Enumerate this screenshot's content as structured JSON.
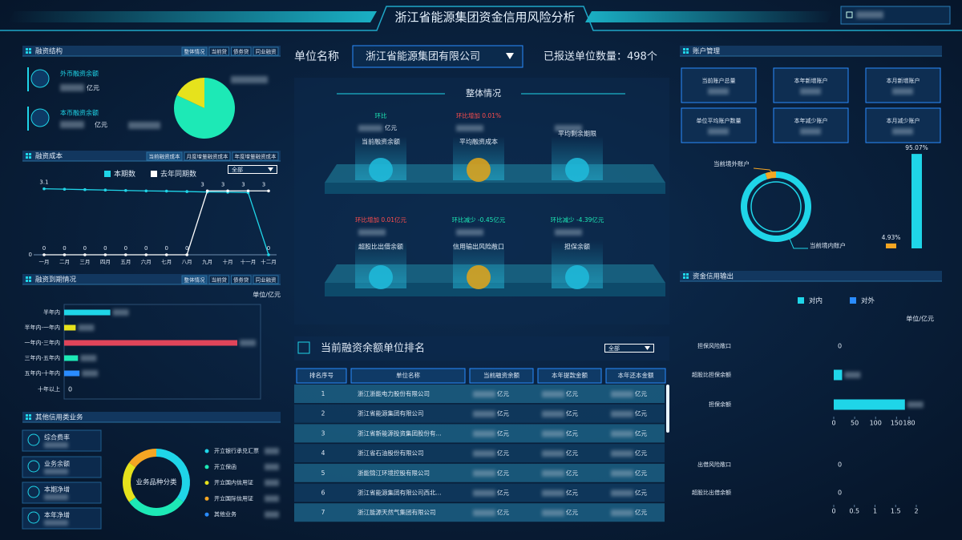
{
  "header": {
    "title": "浙江省能源集团资金信用风险分析"
  },
  "financing_structure": {
    "title": "融资结构",
    "tabs": [
      "整体情况",
      "当前贷",
      "债券贷",
      "同业融资"
    ],
    "items": [
      {
        "label": "外币融资余额",
        "unit": "亿元"
      },
      {
        "label": "本币融资余额",
        "unit": "亿元"
      }
    ],
    "chart": {
      "type": "pie",
      "values": [
        82,
        18
      ],
      "colors": [
        "#1de9b6",
        "#e6e21c"
      ]
    }
  },
  "financing_cost": {
    "title": "融资成本",
    "tabs": [
      "当前融资成本",
      "月度增量融资成本",
      "年度增量融资成本"
    ],
    "select": "全部",
    "chart": {
      "type": "line",
      "categories": [
        "一月",
        "二月",
        "三月",
        "四月",
        "五月",
        "六月",
        "七月",
        "八月",
        "九月",
        "十月",
        "十一月",
        "十二月"
      ],
      "series": [
        {
          "name": "本期数",
          "color": "#1fd5e8",
          "values": [
            3.1,
            3.08,
            3.06,
            3.04,
            3.02,
            3.0,
            2.99,
            2.97,
            2.95,
            2.94,
            2.92,
            0
          ]
        },
        {
          "name": "去年同期数",
          "color": "#ffffff",
          "values": [
            0,
            0,
            0,
            0,
            0,
            0,
            0,
            0,
            3,
            3,
            3,
            3
          ]
        }
      ],
      "ylim": [
        0,
        3.5
      ],
      "yticks": [
        0
      ],
      "grid": true
    }
  },
  "maturity": {
    "title": "融资到期情况",
    "tabs": [
      "整体情况",
      "当前贷",
      "债券贷",
      "同业融资"
    ],
    "unit": "单位/亿元",
    "chart": {
      "type": "bar",
      "orientation": "horizontal",
      "categories": [
        "半年内",
        "半年内-一年内",
        "一年内-三年内",
        "三年内-五年内",
        "五年内-十年内",
        "十年以上"
      ],
      "values": [
        60,
        15,
        225,
        18,
        20,
        0
      ],
      "colors": [
        "#1fd5e8",
        "#e6e21c",
        "#e0455a",
        "#1de9b6",
        "#2a8cff",
        "#1fd5e8"
      ],
      "xlim": [
        0,
        250
      ]
    }
  },
  "other_credit": {
    "title": "其他信用类业务",
    "items": [
      "综合费率",
      "业务余额",
      "本期净增",
      "本年净增"
    ],
    "chart": {
      "type": "pie",
      "label": "业务品种分类",
      "categories": [
        "开立银行承兑汇票",
        "开立保函",
        "开立国内信用证",
        "开立国际信用证",
        "其他业务"
      ],
      "values": [
        35,
        30,
        20,
        15,
        0
      ],
      "colors": [
        "#1fd5e8",
        "#1de9b6",
        "#e6e21c",
        "#f5a623",
        "#2a8cff"
      ]
    }
  },
  "unit_select": {
    "label": "单位名称",
    "value": "浙江省能源集团有限公司",
    "reported": "已报送单位数量：498个"
  },
  "overview": {
    "title": "整体情况",
    "items": [
      {
        "change": "环比",
        "color": "#1de9b6",
        "label": "当前融资余额",
        "unit": "亿元"
      },
      {
        "change": "环比增加 0.01%",
        "color": "#ff4d4d",
        "label": "平均融资成本"
      },
      {
        "label": "平均剩余期限"
      },
      {
        "change": "环比增加 0.01亿元",
        "color": "#ff4d4d",
        "label": "超股比出借余额"
      },
      {
        "change": "环比减少 -0.45亿元",
        "color": "#1de9b6",
        "label": "信用输出风险敞口"
      },
      {
        "change": "环比减少 -4.39亿元",
        "color": "#1de9b6",
        "label": "担保余额"
      }
    ]
  },
  "ranking": {
    "title": "当前融资余额单位排名",
    "select": "全部",
    "columns": [
      "排名序号",
      "单位名称",
      "当前融资余额",
      "本年提款金额",
      "本年还本金额"
    ],
    "unit": "亿元",
    "rows": [
      [
        1,
        "浙江浙能电力股份有限公司"
      ],
      [
        2,
        "浙江省能源集团有限公司"
      ],
      [
        3,
        "浙江省新能源投资集团股份有..."
      ],
      [
        4,
        "浙江省石油股份有限公司"
      ],
      [
        5,
        "浙能锦江环境控股有限公司"
      ],
      [
        6,
        "浙江省能源集团有限公司西北..."
      ],
      [
        7,
        "浙江能源天然气集团有限公司"
      ]
    ]
  },
  "accounts": {
    "title": "账户管理",
    "cards": [
      "当前账户总量",
      "本年新增账户",
      "本月新增账户",
      "单位平均账户数量",
      "本年减少账户",
      "本月减少账户"
    ],
    "chart": {
      "type": "pie",
      "categories": [
        "当前境内账户",
        "当前境外账户"
      ],
      "values": [
        95.07,
        4.93
      ],
      "value_labels": [
        "95.07%",
        "4.93%"
      ],
      "colors": [
        "#1fd5e8",
        "#f5a623"
      ]
    }
  },
  "credit_output": {
    "title": "资金信用输出",
    "unit": "单位/亿元",
    "legend": [
      {
        "name": "对内",
        "color": "#1fd5e8"
      },
      {
        "name": "对外",
        "color": "#2a8cff"
      }
    ],
    "charts": [
      {
        "type": "bar",
        "orientation": "horizontal",
        "categories": [
          "担保风险敞口",
          "超股比担保余额",
          "担保余额"
        ],
        "values": [
          0,
          20,
          170
        ],
        "xlim": [
          0,
          180
        ],
        "xticks": [
          0,
          50,
          100,
          150,
          180
        ]
      },
      {
        "type": "bar",
        "orientation": "horizontal",
        "categories": [
          "出借风险敞口",
          "超股比出借余额"
        ],
        "values": [
          0,
          0
        ],
        "xlim": [
          0,
          2
        ],
        "xticks": [
          0,
          0.5,
          1,
          1.5,
          2
        ]
      }
    ]
  }
}
